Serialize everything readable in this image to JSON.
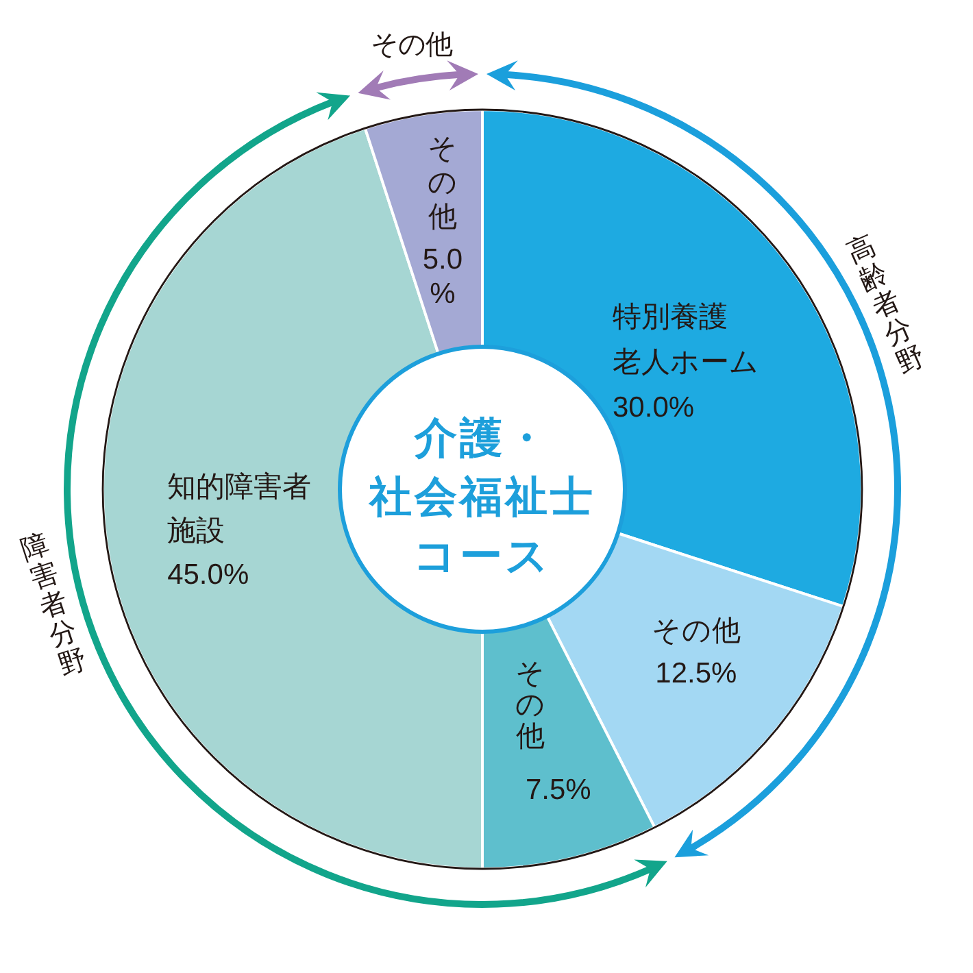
{
  "chart_data": {
    "type": "donut",
    "title": "介護・社会福祉士コース",
    "categories": [
      "特別養護老人ホーム",
      "その他",
      "その他",
      "知的障害者施設",
      "その他"
    ],
    "values": [
      30.0,
      12.5,
      7.5,
      45.0,
      5.0
    ],
    "colors": [
      "#1eaae1",
      "#a3d8f3",
      "#5ebfcd",
      "#a6d6d3",
      "#a4a9d4"
    ],
    "value_labels": [
      "30.0%",
      "12.5%",
      "7.5%",
      "45.0%",
      "5.0\n%"
    ],
    "annotations": [
      "高齢者分野",
      "障害者分野",
      "その他"
    ]
  }
}
